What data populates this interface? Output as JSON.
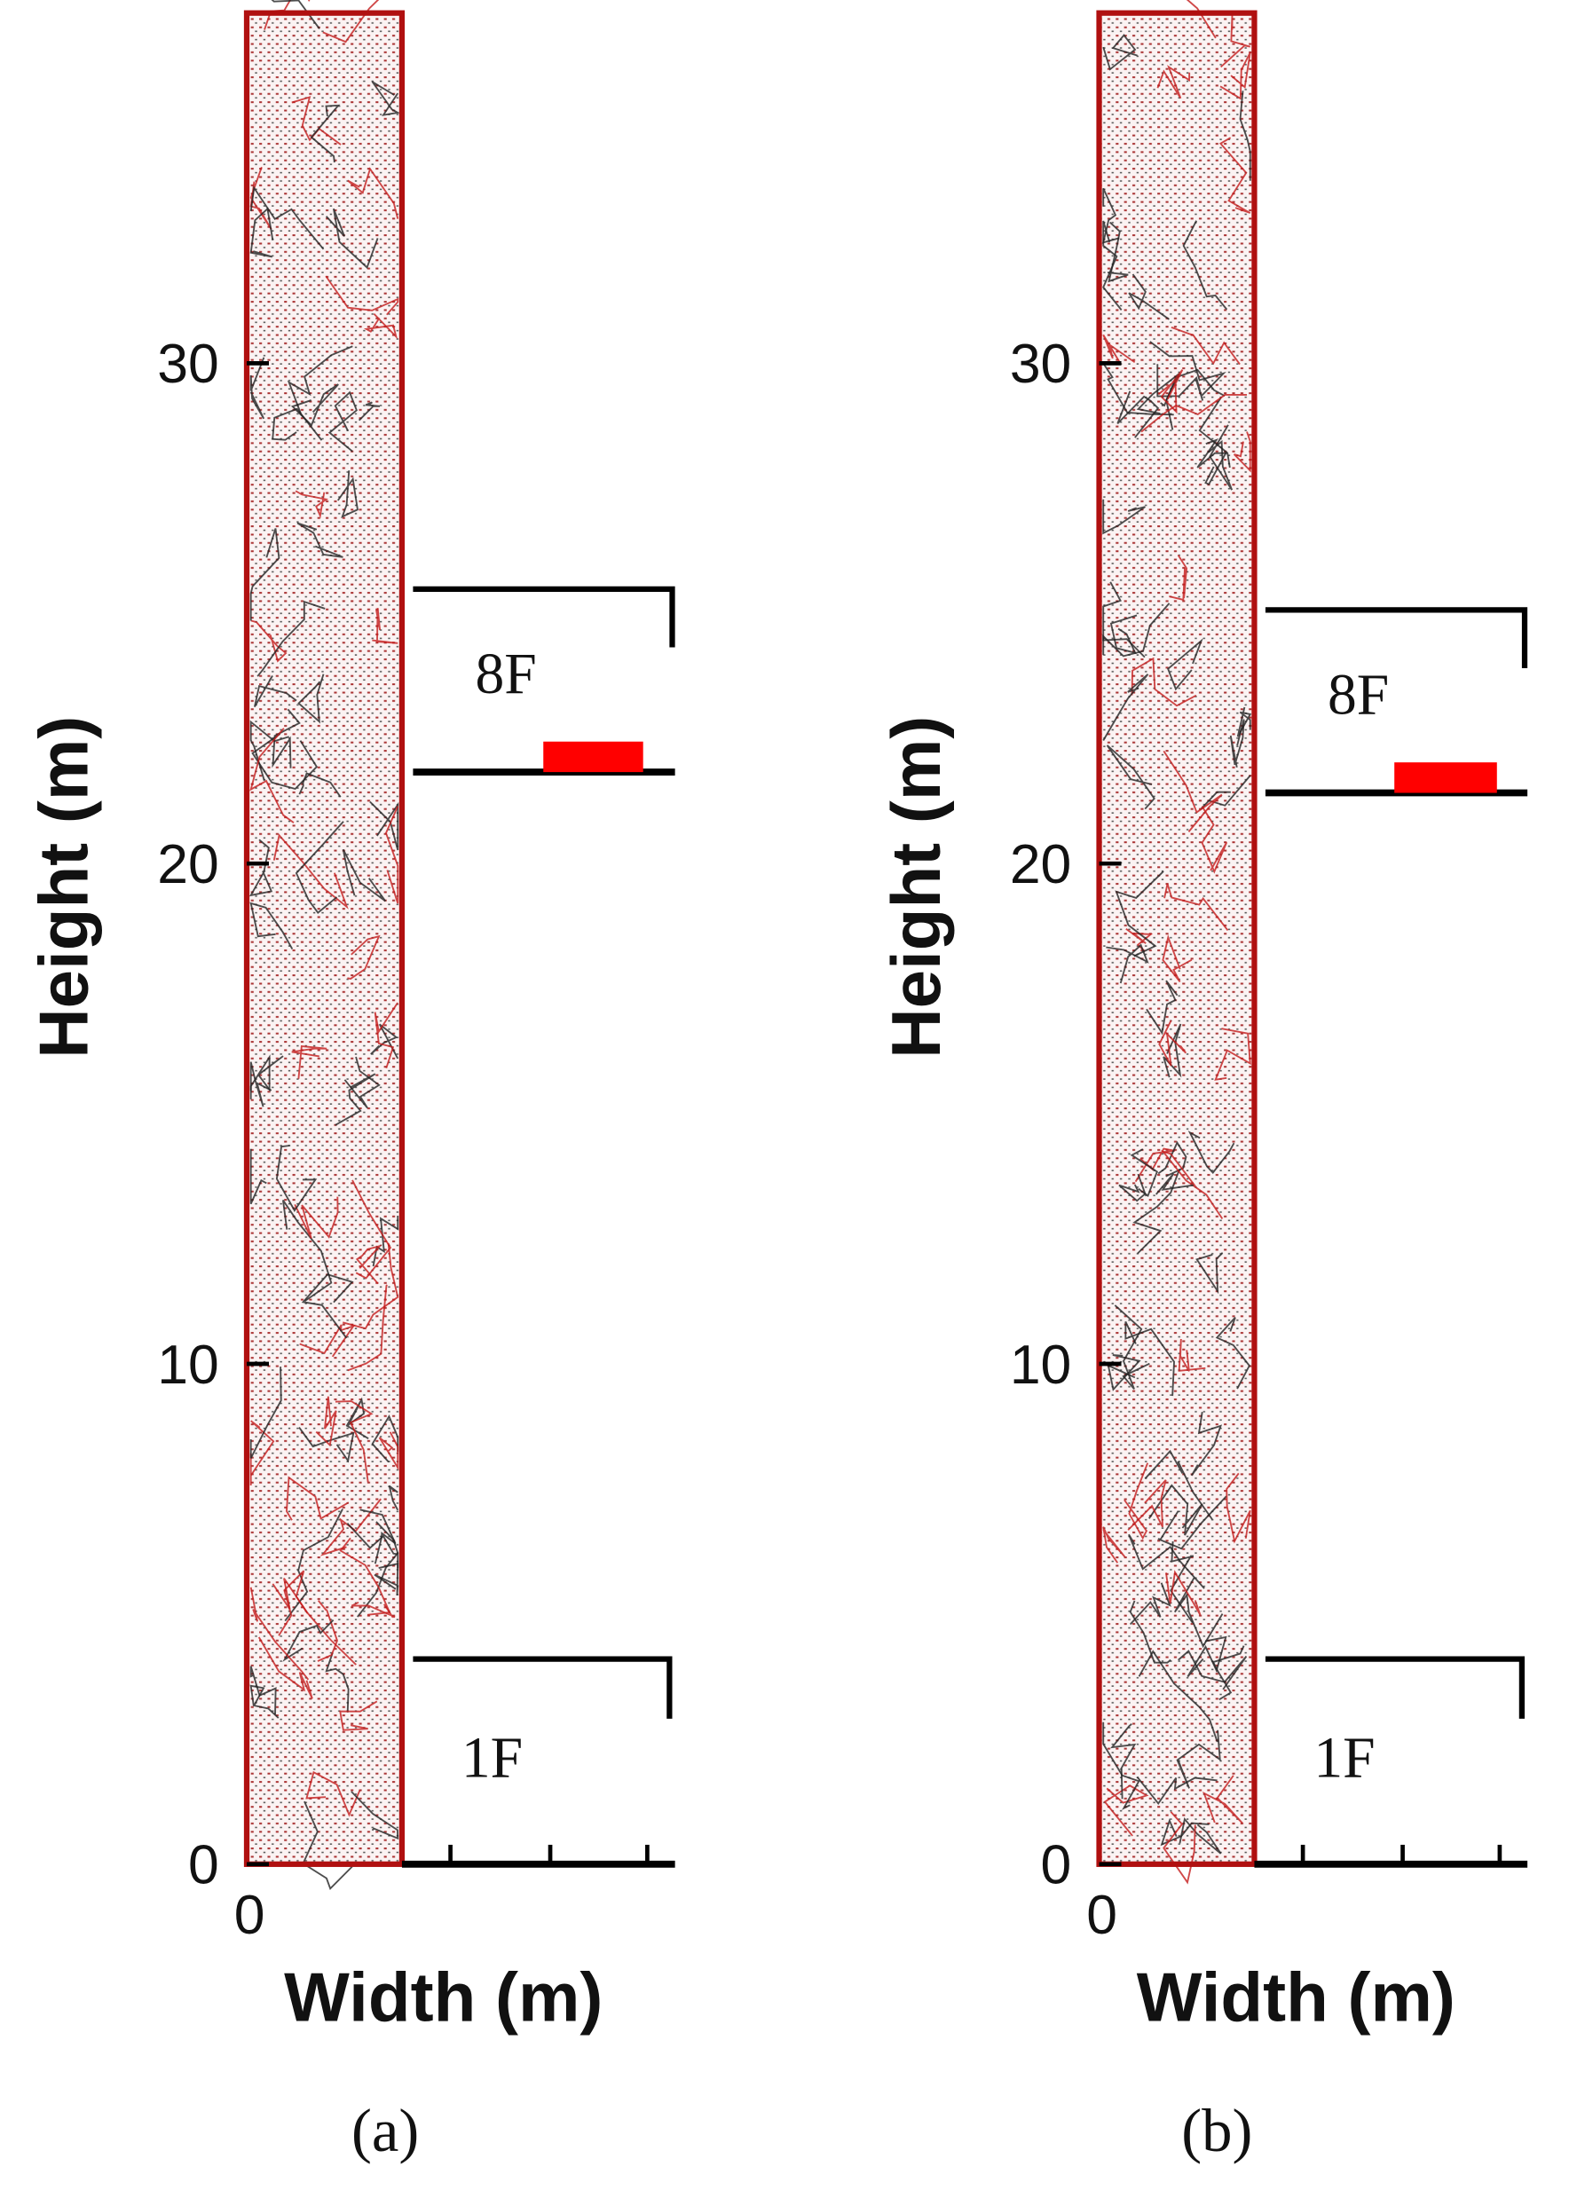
{
  "chart_data": [
    {
      "type": "flow-field",
      "panel_label": "(a)",
      "xlabel": "Width (m)",
      "ylabel": "Height (m)",
      "ylim": [
        0,
        37
      ],
      "yticks": [
        0,
        10,
        20,
        30
      ],
      "xticks": [
        0
      ],
      "annotations": [
        "8F",
        "1F"
      ]
    },
    {
      "type": "flow-field",
      "panel_label": "(b)",
      "xlabel": "Width (m)",
      "ylabel": "Height (m)",
      "ylim": [
        0,
        37
      ],
      "yticks": [
        0,
        10,
        20,
        30
      ],
      "xticks": [
        0
      ],
      "annotations": [
        "8F",
        "1F"
      ]
    }
  ]
}
